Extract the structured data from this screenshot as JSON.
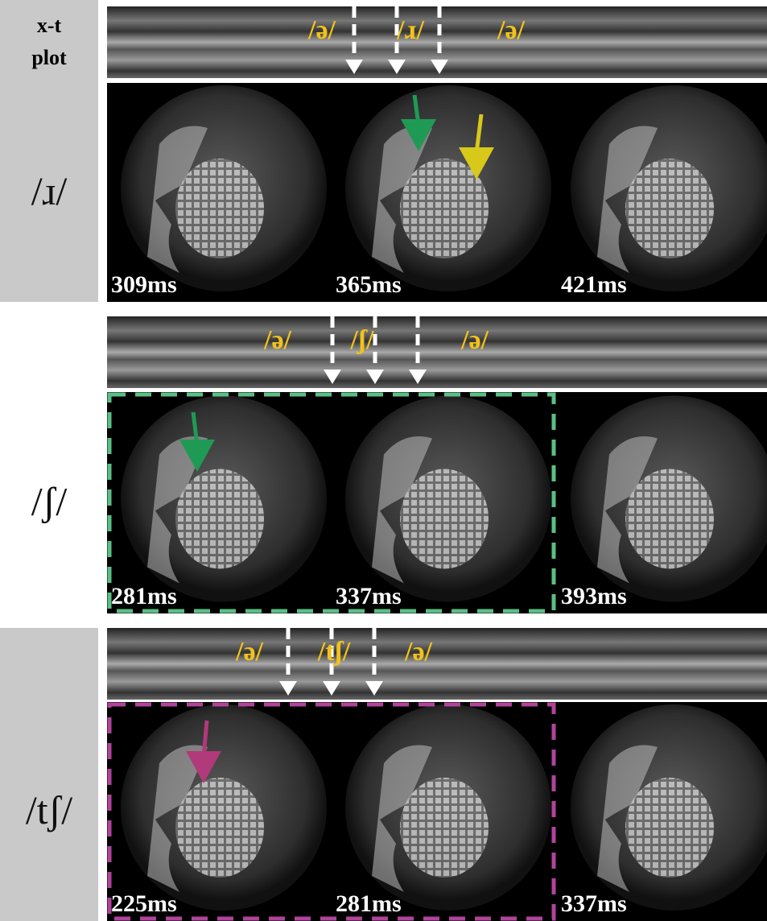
{
  "xt_label": {
    "line1": "x-t",
    "line2": "plot"
  },
  "panels": [
    {
      "phoneme": "/ɹ/",
      "xt_labels": [
        "/ə/",
        "/ɹ/",
        "/ə/"
      ],
      "frames": [
        "309ms",
        "365ms",
        "421ms"
      ]
    },
    {
      "phoneme": "/ʃ/",
      "xt_labels": [
        "/ə/",
        "/ʃ/",
        "/ə/"
      ],
      "frames": [
        "281ms",
        "337ms",
        "393ms"
      ]
    },
    {
      "phoneme": "/tʃ/",
      "xt_labels": [
        "/ə/",
        "/tʃ/",
        "/ə/"
      ],
      "frames": [
        "225ms",
        "281ms",
        "337ms"
      ]
    }
  ]
}
